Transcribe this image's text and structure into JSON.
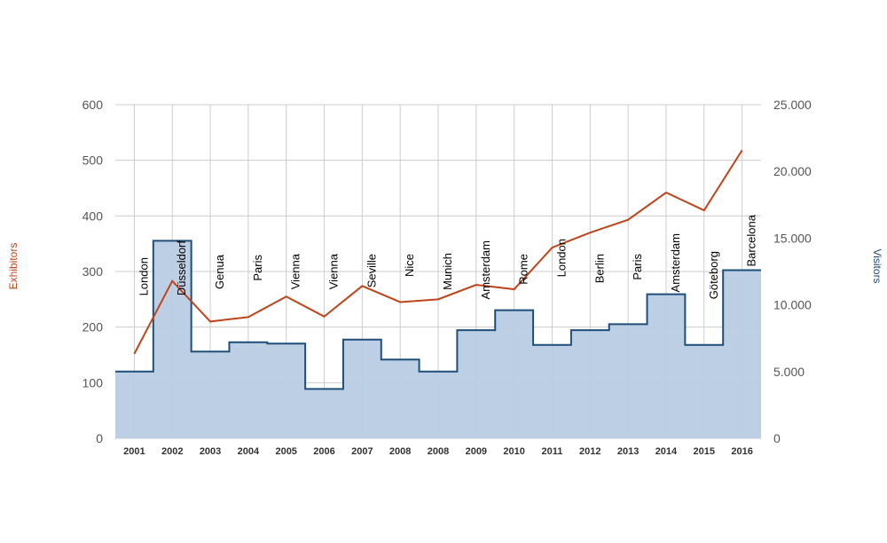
{
  "chart_data": {
    "type": "area",
    "x": [
      "2001",
      "2002",
      "2003",
      "2004",
      "2005",
      "2006",
      "2007",
      "2008",
      "2008",
      "2009",
      "2010",
      "2011",
      "2012",
      "2013",
      "2014",
      "2015",
      "2016"
    ],
    "cities": [
      "London",
      "Düsseldorf",
      "Genua",
      "Paris",
      "Vienna",
      "Vienna",
      "Seville",
      "Nice",
      "Munich",
      "Amsterdam",
      "Rome",
      "London",
      "Berlin",
      "Paris",
      "Amsterdam",
      "Göteborg",
      "Barcelona"
    ],
    "series": [
      {
        "name": "Exhibitors",
        "axis": "left",
        "style": "line",
        "color": "#c0441b",
        "values": [
          152,
          283,
          210,
          218,
          255,
          219,
          274,
          245,
          250,
          276,
          268,
          343,
          370,
          393,
          442,
          410,
          518
        ]
      },
      {
        "name": "Visitors",
        "axis": "right",
        "style": "step-area",
        "color": "#1f4e79",
        "fill": "#b8cce4",
        "values": [
          5000,
          14800,
          6500,
          7200,
          7100,
          3700,
          7400,
          5900,
          5000,
          8100,
          9600,
          7000,
          8100,
          8550,
          10800,
          7000,
          12600
        ]
      }
    ],
    "ylabel_left": "Exhibitors",
    "ylabel_right": "Visitors",
    "ylim_left": [
      0,
      600
    ],
    "ylim_right": [
      0,
      25000
    ],
    "yticks_left": [
      "0",
      "100",
      "200",
      "300",
      "400",
      "500",
      "600"
    ],
    "yticks_right": [
      "0",
      "5.000",
      "10.000",
      "15.000",
      "20.000",
      "25.000"
    ],
    "grid": true,
    "colors": {
      "grid": "#cccccc",
      "visitors_line": "#1f4e79",
      "visitors_fill": "#b8cce4",
      "exhibitors_line": "#c0441b",
      "ylabel_left_color": "#c0441b",
      "ylabel_right_color": "#1f4e79"
    }
  }
}
